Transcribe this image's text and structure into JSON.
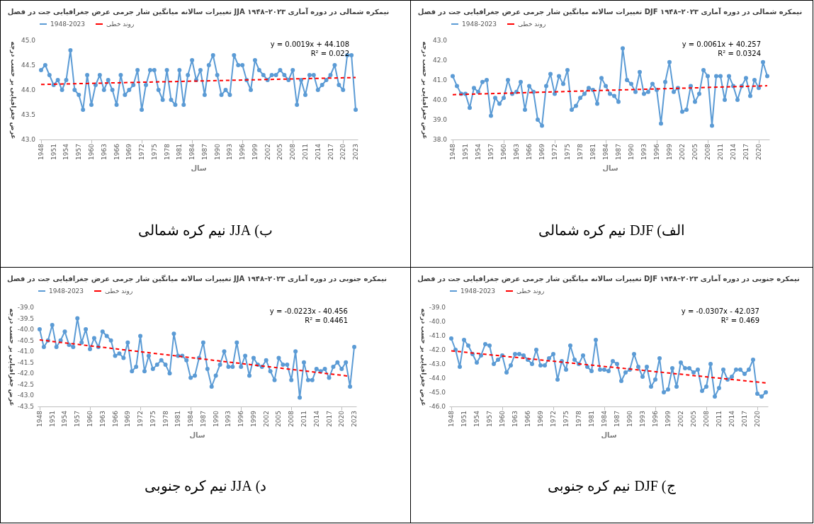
{
  "chart_data": [
    {
      "type": "line",
      "title": "تغییرات سالانه میانگین شار جرمی عرض جغرافیایی جت در فصل JJA نیمکره شمالی در دوره آماری ۲۰۲۳–۱۹۴۸",
      "xlabel": "سال",
      "ylabel": "عرض جغرافیایی بر حسب درجه",
      "legend": "top",
      "marker": "circle",
      "x": [
        1948,
        1949,
        1950,
        1951,
        1952,
        1953,
        1954,
        1955,
        1956,
        1957,
        1958,
        1959,
        1960,
        1961,
        1962,
        1963,
        1964,
        1965,
        1966,
        1967,
        1968,
        1969,
        1970,
        1971,
        1972,
        1973,
        1974,
        1975,
        1976,
        1977,
        1978,
        1979,
        1980,
        1981,
        1982,
        1983,
        1984,
        1985,
        1986,
        1987,
        1988,
        1989,
        1990,
        1991,
        1992,
        1993,
        1994,
        1995,
        1996,
        1997,
        1998,
        1999,
        2000,
        2001,
        2002,
        2003,
        2004,
        2005,
        2006,
        2007,
        2008,
        2009,
        2010,
        2011,
        2012,
        2013,
        2014,
        2015,
        2016,
        2017,
        2018,
        2019,
        2020,
        2021,
        2022,
        2023
      ],
      "xlim": [
        1947.5,
        2023.5
      ],
      "xticks": [
        1948,
        1951,
        1954,
        1957,
        1960,
        1963,
        1966,
        1969,
        1972,
        1975,
        1978,
        1981,
        1984,
        1987,
        1990,
        1993,
        1996,
        1999,
        2002,
        2005,
        2008,
        2011,
        2014,
        2017,
        2020,
        2023
      ],
      "ylim": [
        43,
        45
      ],
      "yticks": [
        {
          "value": 43,
          "label": "43.0"
        },
        43.5,
        {
          "value": 44,
          "label": "44.0"
        },
        44.5,
        {
          "value": 45,
          "label": "45.0"
        }
      ],
      "series": [
        {
          "name": "1948-2023",
          "color": "#5b9bd5",
          "values": [
            44.4,
            44.5,
            44.3,
            44.1,
            44.2,
            44.0,
            44.2,
            44.8,
            44.0,
            43.9,
            43.6,
            44.3,
            43.7,
            44.1,
            44.3,
            44.0,
            44.2,
            44.0,
            43.7,
            44.3,
            43.9,
            44.0,
            44.1,
            44.4,
            43.6,
            44.1,
            44.4,
            44.4,
            44.0,
            43.8,
            44.4,
            43.8,
            43.7,
            44.4,
            43.7,
            44.3,
            44.6,
            44.2,
            44.4,
            43.9,
            44.5,
            44.7,
            44.3,
            43.9,
            44.0,
            43.9,
            44.7,
            44.5,
            44.5,
            44.2,
            44.0,
            44.6,
            44.4,
            44.3,
            44.2,
            44.3,
            44.3,
            44.4,
            44.3,
            44.2,
            44.4,
            43.7,
            44.2,
            43.9,
            44.3,
            44.3,
            44.0,
            44.1,
            44.2,
            44.3,
            44.5,
            44.1,
            44.0,
            44.7,
            44.7,
            43.6
          ]
        },
        {
          "name": "روند خطی",
          "type": "line",
          "color": "#ff0000",
          "line_style": "dashed",
          "marker": "none",
          "x": [
            1948,
            2023
          ],
          "values": [
            44.11,
            44.25
          ]
        }
      ],
      "annotations": [
        "y = 0.0019x + 44.108",
        "R² = 0.022",
        "ب) JJA نیم کره شمالی"
      ]
    },
    {
      "type": "line",
      "title": "تغییرات سالانه میانگین شار جرمی عرض جغرافیایی جت در فصل DJF نیمکره شمالی در دوره آماری ۲۰۲۳–۱۹۴۸",
      "xlabel": "سال",
      "ylabel": "عرض جغرافیایی بر حسب درجه",
      "legend": "top",
      "marker": "circle",
      "x": [
        1948,
        1949,
        1950,
        1951,
        1952,
        1953,
        1954,
        1955,
        1956,
        1957,
        1958,
        1959,
        1960,
        1961,
        1962,
        1963,
        1964,
        1965,
        1966,
        1967,
        1968,
        1969,
        1970,
        1971,
        1972,
        1973,
        1974,
        1975,
        1976,
        1977,
        1978,
        1979,
        1980,
        1981,
        1982,
        1983,
        1984,
        1985,
        1986,
        1987,
        1988,
        1989,
        1990,
        1991,
        1992,
        1993,
        1994,
        1995,
        1996,
        1997,
        1998,
        1999,
        2000,
        2001,
        2002,
        2003,
        2004,
        2005,
        2006,
        2007,
        2008,
        2009,
        2010,
        2011,
        2012,
        2013,
        2014,
        2015,
        2016,
        2017,
        2018,
        2019,
        2020,
        2021,
        2022
      ],
      "xlim": [
        1947.5,
        2022.5
      ],
      "xticks": [
        1948,
        1951,
        1954,
        1957,
        1960,
        1963,
        1966,
        1969,
        1972,
        1975,
        1978,
        1981,
        1984,
        1987,
        1990,
        1993,
        1996,
        1999,
        2002,
        2005,
        2008,
        2011,
        2014,
        2017,
        2020
      ],
      "ylim": [
        38,
        43
      ],
      "yticks": [
        {
          "value": 38,
          "label": "38.0"
        },
        {
          "value": 39,
          "label": "39.0"
        },
        {
          "value": 40,
          "label": "40.0"
        },
        {
          "value": 41,
          "label": "41.0"
        },
        {
          "value": 42,
          "label": "42.0"
        },
        {
          "value": 43,
          "label": "43.0"
        }
      ],
      "series": [
        {
          "name": "1948-2023",
          "color": "#5b9bd5",
          "values": [
            41.2,
            40.7,
            40.3,
            40.3,
            39.6,
            40.6,
            40.4,
            40.9,
            41.0,
            39.2,
            40.1,
            39.8,
            40.1,
            41.0,
            40.3,
            40.4,
            40.9,
            39.5,
            40.7,
            40.4,
            39.0,
            38.7,
            40.7,
            41.3,
            40.3,
            41.2,
            40.8,
            41.5,
            39.5,
            39.7,
            40.1,
            40.3,
            40.6,
            40.5,
            39.8,
            41.1,
            40.7,
            40.3,
            40.2,
            39.9,
            42.6,
            41.0,
            40.8,
            40.4,
            41.4,
            40.3,
            40.4,
            40.8,
            40.5,
            38.8,
            40.9,
            41.9,
            40.4,
            40.6,
            39.4,
            39.5,
            40.7,
            39.9,
            40.3,
            41.5,
            41.2,
            38.7,
            41.2,
            41.2,
            40.0,
            41.2,
            40.7,
            40.0,
            40.7,
            41.1,
            40.2,
            41.0,
            40.6,
            41.9,
            41.2
          ]
        },
        {
          "name": "روند خطی",
          "type": "line",
          "color": "#ff0000",
          "line_style": "dashed",
          "marker": "none",
          "x": [
            1948,
            2022
          ],
          "values": [
            40.26,
            40.71
          ]
        }
      ],
      "annotations": [
        "y = 0.0061x + 40.257",
        "R² = 0.0324",
        "الف) DJF نیم کره شمالی"
      ]
    },
    {
      "type": "line",
      "title": "تغییرات سالانه میانگین شار جرمی عرض جغرافیایی جت در فصل JJA نیمکره جنوبی در دوره آماری ۲۰۲۳–۱۹۴۸",
      "xlabel": "سال",
      "ylabel": "عرض جغرافیایی بر حسب درجه",
      "legend": "top",
      "marker": "circle",
      "x": [
        1948,
        1949,
        1950,
        1951,
        1952,
        1953,
        1954,
        1955,
        1956,
        1957,
        1958,
        1959,
        1960,
        1961,
        1962,
        1963,
        1964,
        1965,
        1966,
        1967,
        1968,
        1969,
        1970,
        1971,
        1972,
        1973,
        1974,
        1975,
        1976,
        1977,
        1978,
        1979,
        1980,
        1981,
        1982,
        1983,
        1984,
        1985,
        1986,
        1987,
        1988,
        1989,
        1990,
        1991,
        1992,
        1993,
        1994,
        1995,
        1996,
        1997,
        1998,
        1999,
        2000,
        2001,
        2002,
        2003,
        2004,
        2005,
        2006,
        2007,
        2008,
        2009,
        2010,
        2011,
        2012,
        2013,
        2014,
        2015,
        2016,
        2017,
        2018,
        2019,
        2020,
        2021,
        2022,
        2023
      ],
      "xlim": [
        1947.5,
        2023.5
      ],
      "xticks": [
        1948,
        1951,
        1954,
        1957,
        1960,
        1963,
        1966,
        1969,
        1972,
        1975,
        1978,
        1981,
        1984,
        1987,
        1990,
        1993,
        1996,
        1999,
        2002,
        2005,
        2008,
        2011,
        2014,
        2017,
        2020,
        2023
      ],
      "ylim": [
        -43.5,
        -39
      ],
      "yticks": [
        -43.5,
        {
          "value": -43,
          "label": "-43.0"
        },
        -42.5,
        {
          "value": -42,
          "label": "-42.0"
        },
        -41.5,
        {
          "value": -41,
          "label": "-41.0"
        },
        -40.5,
        {
          "value": -40,
          "label": "-40.0"
        },
        -39.5,
        {
          "value": -39,
          "label": "-39.0"
        }
      ],
      "series": [
        {
          "name": "1948-2023",
          "color": "#5b9bd5",
          "values": [
            -40.0,
            -40.8,
            -40.5,
            -39.8,
            -40.8,
            -40.5,
            -40.1,
            -40.7,
            -40.8,
            -39.5,
            -40.6,
            -40.0,
            -40.9,
            -40.4,
            -40.8,
            -40.1,
            -40.3,
            -40.5,
            -41.2,
            -41.1,
            -41.3,
            -40.6,
            -41.9,
            -41.7,
            -40.3,
            -41.9,
            -41.2,
            -41.8,
            -41.6,
            -41.4,
            -41.6,
            -42.0,
            -40.2,
            -41.2,
            -41.2,
            -41.4,
            -42.2,
            -42.1,
            -41.3,
            -40.6,
            -41.8,
            -42.6,
            -42.1,
            -41.6,
            -41.0,
            -41.7,
            -41.7,
            -40.6,
            -41.7,
            -41.2,
            -42.1,
            -41.3,
            -41.6,
            -41.7,
            -41.4,
            -41.9,
            -42.3,
            -41.3,
            -41.6,
            -41.6,
            -42.3,
            -41.0,
            -43.1,
            -41.5,
            -42.3,
            -42.3,
            -41.8,
            -41.9,
            -41.8,
            -42.2,
            -41.7,
            -41.5,
            -41.8,
            -41.5,
            -42.6,
            -40.8
          ]
        },
        {
          "name": "روند خطی",
          "type": "line",
          "color": "#ff0000",
          "line_style": "dashed",
          "marker": "none",
          "x": [
            1948,
            2022
          ],
          "values": [
            -40.48,
            -42.13
          ]
        }
      ],
      "annotations": [
        "y = -0.0223x - 40.456",
        "R² = 0.4461",
        "د) JJA نیم کره جنوبی"
      ]
    },
    {
      "type": "line",
      "title": "تغییرات سالانه میانگین شار جرمی عرض جغرافیایی جت در فصل DJF نیمکره جنوبی در دوره آماری ۲۰۲۳–۱۹۴۸",
      "xlabel": "سال",
      "ylabel": "عرض جغرافیایی بر حسب درجه",
      "legend": "top",
      "marker": "circle",
      "x": [
        1948,
        1949,
        1950,
        1951,
        1952,
        1953,
        1954,
        1955,
        1956,
        1957,
        1958,
        1959,
        1960,
        1961,
        1962,
        1963,
        1964,
        1965,
        1966,
        1967,
        1968,
        1969,
        1970,
        1971,
        1972,
        1973,
        1974,
        1975,
        1976,
        1977,
        1978,
        1979,
        1980,
        1981,
        1982,
        1983,
        1984,
        1985,
        1986,
        1987,
        1988,
        1989,
        1990,
        1991,
        1992,
        1993,
        1994,
        1995,
        1996,
        1997,
        1998,
        1999,
        2000,
        2001,
        2002,
        2003,
        2004,
        2005,
        2006,
        2007,
        2008,
        2009,
        2010,
        2011,
        2012,
        2013,
        2014,
        2015,
        2016,
        2017,
        2018,
        2019,
        2020,
        2021,
        2022
      ],
      "xlim": [
        1947.5,
        2022.5
      ],
      "xticks": [
        1948,
        1951,
        1954,
        1957,
        1960,
        1963,
        1966,
        1969,
        1972,
        1975,
        1978,
        1981,
        1984,
        1987,
        1990,
        1993,
        1996,
        1999,
        2002,
        2005,
        2008,
        2011,
        2014,
        2017,
        2020
      ],
      "ylim": [
        -46,
        -39
      ],
      "yticks": [
        {
          "value": -46,
          "label": "-46.0"
        },
        {
          "value": -45,
          "label": "-45.0"
        },
        {
          "value": -44,
          "label": "-44.0"
        },
        {
          "value": -43,
          "label": "-43.0"
        },
        {
          "value": -42,
          "label": "-42.0"
        },
        {
          "value": -41,
          "label": "-41.0"
        },
        {
          "value": -40,
          "label": "-40.0"
        },
        {
          "value": -39,
          "label": "-39.0"
        }
      ],
      "series": [
        {
          "name": "1948-2023",
          "color": "#5b9bd5",
          "values": [
            -41.2,
            -42.0,
            -43.2,
            -41.3,
            -41.7,
            -42.3,
            -42.9,
            -42.4,
            -41.6,
            -41.7,
            -43.0,
            -42.7,
            -42.4,
            -43.6,
            -43.1,
            -42.3,
            -42.3,
            -42.4,
            -42.7,
            -43.0,
            -42.0,
            -43.1,
            -43.1,
            -42.6,
            -42.3,
            -44.1,
            -42.8,
            -43.4,
            -41.7,
            -42.7,
            -43.0,
            -42.4,
            -43.2,
            -43.5,
            -41.3,
            -43.4,
            -43.4,
            -43.5,
            -42.8,
            -43.0,
            -44.2,
            -43.6,
            -43.4,
            -42.3,
            -43.2,
            -43.9,
            -43.2,
            -44.6,
            -44.1,
            -42.6,
            -45.0,
            -44.8,
            -43.3,
            -44.6,
            -42.9,
            -43.3,
            -43.3,
            -43.6,
            -43.4,
            -44.9,
            -44.6,
            -43.0,
            -45.3,
            -44.7,
            -43.4,
            -44.1,
            -43.9,
            -43.4,
            -43.4,
            -43.7,
            -43.4,
            -42.7,
            -45.1,
            -45.3,
            -45.0
          ]
        },
        {
          "name": "روند خطی",
          "type": "line",
          "color": "#ff0000",
          "line_style": "dashed",
          "marker": "none",
          "x": [
            1948,
            2022
          ],
          "values": [
            -42.07,
            -44.34
          ]
        }
      ],
      "annotations": [
        "y = -0.0307x - 42.037",
        "R² = 0.469",
        "ج) DJF نیم کره جنوبی"
      ]
    }
  ]
}
